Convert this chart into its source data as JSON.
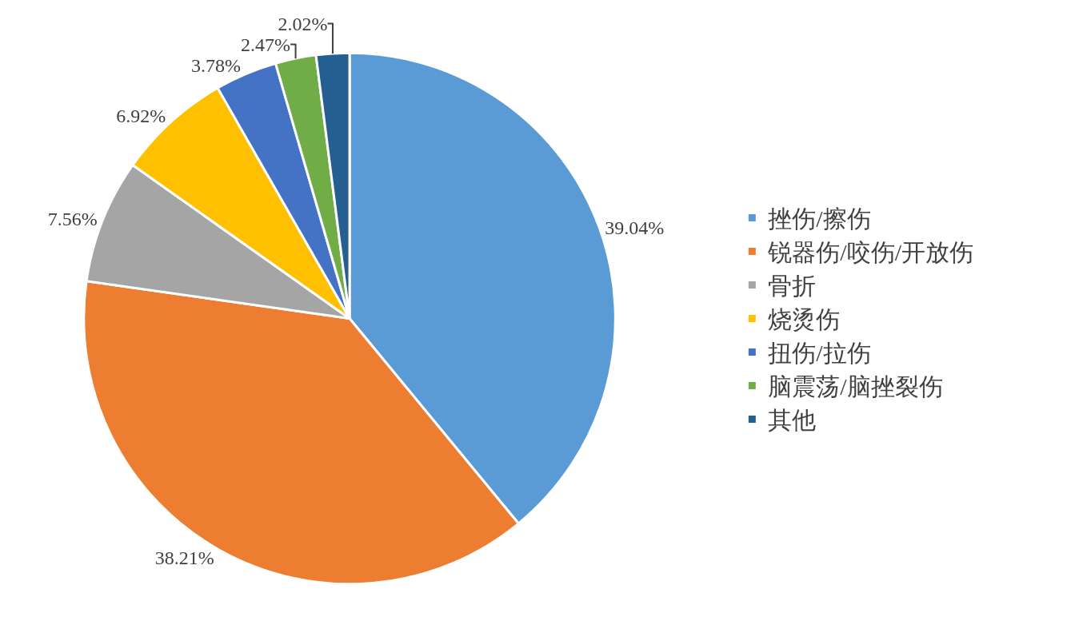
{
  "chart_data": {
    "type": "pie",
    "categories": [
      "挫伤/擦伤",
      "锐器伤/咬伤/开放伤",
      "骨折",
      "烧烫伤",
      "扭伤/拉伤",
      "脑震荡/脑挫裂伤",
      "其他"
    ],
    "values": [
      39.04,
      38.21,
      7.56,
      6.92,
      3.78,
      2.47,
      2.02
    ],
    "value_labels": [
      "39.04%",
      "38.21%",
      "7.56%",
      "6.92%",
      "3.78%",
      "2.47%",
      "2.02%"
    ],
    "colors": [
      "#5b9bd5",
      "#ed7d31",
      "#a5a5a5",
      "#ffc000",
      "#4472c4",
      "#70ad47",
      "#255e91"
    ],
    "legend": "right"
  }
}
